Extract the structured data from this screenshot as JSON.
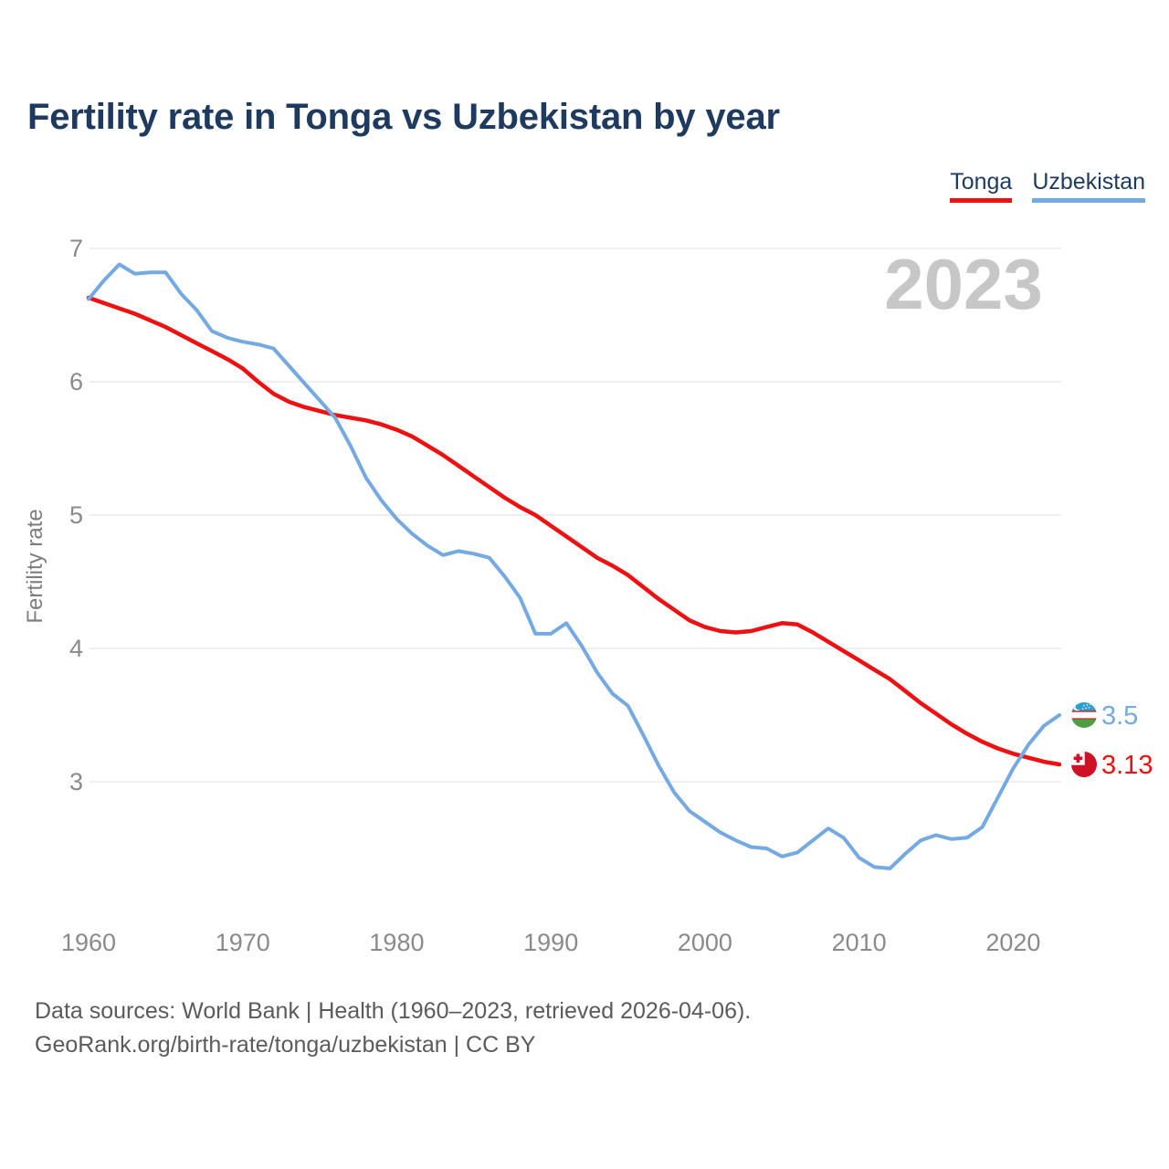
{
  "title": "Fertility rate in Tonga vs Uzbekistan by year",
  "watermark": "2023",
  "legend": [
    {
      "label": "Tonga",
      "color": "#ee1111"
    },
    {
      "label": "Uzbekistan",
      "color": "#74a9e2"
    }
  ],
  "footer": {
    "line1": "Data sources: World Bank | Health (1960–2023, retrieved 2026-04-06).",
    "line2": "GeoRank.org/birth-rate/tonga/uzbekistan | CC BY"
  },
  "chart_data": {
    "type": "line",
    "title": "Fertility rate in Tonga vs Uzbekistan by year",
    "xlabel": "",
    "ylabel": "Fertility rate",
    "xticks": [
      1960,
      1970,
      1980,
      1990,
      2000,
      2010,
      2020
    ],
    "yticks": [
      3,
      4,
      5,
      6,
      7
    ],
    "xlim": [
      1960,
      2023
    ],
    "ylim": [
      2.2,
      7.05
    ],
    "grid": "horizontal",
    "legend_position": "top-right",
    "x": [
      1960,
      1961,
      1962,
      1963,
      1964,
      1965,
      1966,
      1967,
      1968,
      1969,
      1970,
      1971,
      1972,
      1973,
      1974,
      1975,
      1976,
      1977,
      1978,
      1979,
      1980,
      1981,
      1982,
      1983,
      1984,
      1985,
      1986,
      1987,
      1988,
      1989,
      1990,
      1991,
      1992,
      1993,
      1994,
      1995,
      1996,
      1997,
      1998,
      1999,
      2000,
      2001,
      2002,
      2003,
      2004,
      2005,
      2006,
      2007,
      2008,
      2009,
      2010,
      2011,
      2012,
      2013,
      2014,
      2015,
      2016,
      2017,
      2018,
      2019,
      2020,
      2021,
      2022,
      2023
    ],
    "series": [
      {
        "name": "Tonga",
        "color": "#ee1111",
        "flag": "tonga",
        "end_label": "3.13",
        "stroke_width": 4.5,
        "values": [
          6.63,
          6.59,
          6.55,
          6.51,
          6.46,
          6.41,
          6.35,
          6.29,
          6.23,
          6.17,
          6.1,
          6.0,
          5.91,
          5.85,
          5.81,
          5.78,
          5.75,
          5.73,
          5.71,
          5.68,
          5.64,
          5.59,
          5.52,
          5.45,
          5.37,
          5.29,
          5.21,
          5.13,
          5.06,
          5.0,
          4.92,
          4.84,
          4.76,
          4.68,
          4.62,
          4.55,
          4.46,
          4.37,
          4.29,
          4.21,
          4.16,
          4.13,
          4.12,
          4.13,
          4.16,
          4.19,
          4.18,
          4.12,
          4.05,
          3.98,
          3.91,
          3.84,
          3.77,
          3.68,
          3.59,
          3.51,
          3.43,
          3.36,
          3.3,
          3.25,
          3.21,
          3.18,
          3.15,
          3.13
        ]
      },
      {
        "name": "Uzbekistan",
        "color": "#74a9e2",
        "flag": "uzbekistan",
        "end_label": "3.5",
        "stroke_width": 4,
        "values": [
          6.62,
          6.76,
          6.88,
          6.81,
          6.82,
          6.82,
          6.66,
          6.54,
          6.38,
          6.33,
          6.3,
          6.28,
          6.25,
          6.12,
          5.99,
          5.86,
          5.73,
          5.52,
          5.28,
          5.11,
          4.97,
          4.86,
          4.77,
          4.7,
          4.73,
          4.71,
          4.68,
          4.54,
          4.38,
          4.11,
          4.11,
          4.19,
          4.02,
          3.82,
          3.66,
          3.57,
          3.35,
          3.12,
          2.92,
          2.78,
          2.7,
          2.62,
          2.56,
          2.51,
          2.5,
          2.44,
          2.47,
          2.56,
          2.65,
          2.58,
          2.43,
          2.36,
          2.35,
          2.46,
          2.56,
          2.6,
          2.57,
          2.58,
          2.66,
          2.88,
          3.1,
          3.28,
          3.42,
          3.5
        ]
      }
    ]
  }
}
